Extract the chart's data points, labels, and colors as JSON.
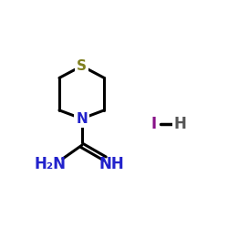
{
  "bg_color": "#ffffff",
  "ring": {
    "S_color": "#808020",
    "N_color": "#2222cc",
    "bond_color": "#000000",
    "bond_width": 2.2
  },
  "amidine": {
    "text_color": "#2222cc",
    "bond_color": "#000000"
  },
  "HI": {
    "I_color": "#881188",
    "H_color": "#555555",
    "bond_color": "#000000",
    "bond_width": 2.5
  },
  "S_label": "S",
  "N_label": "N",
  "NH_label": "NH",
  "NH2_label": "H₂N",
  "I_label": "I",
  "H_label": "H",
  "S_fontsize": 11,
  "N_fontsize": 11,
  "amidine_fontsize": 12,
  "HI_fontsize": 12
}
